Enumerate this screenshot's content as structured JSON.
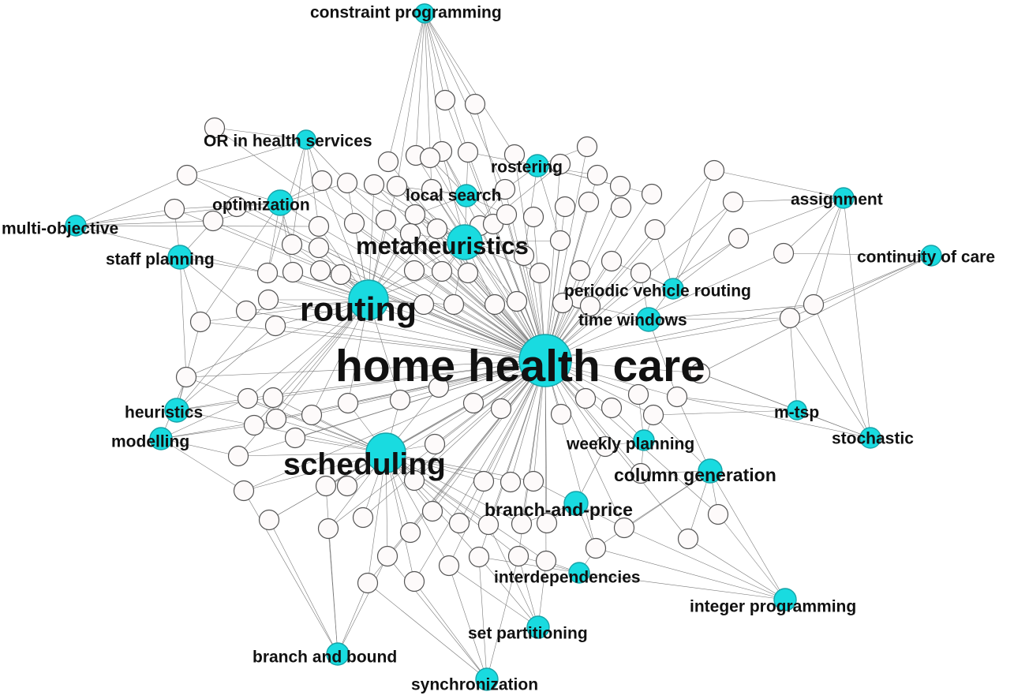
{
  "diagram": {
    "keywords": [
      {
        "id": "constraint-programming",
        "label": "constraint programming"
      },
      {
        "id": "or-in-health-services",
        "label": "OR in health services"
      },
      {
        "id": "rostering",
        "label": "rostering"
      },
      {
        "id": "local-search",
        "label": "local search"
      },
      {
        "id": "optimization",
        "label": "optimization"
      },
      {
        "id": "assignment",
        "label": "assignment"
      },
      {
        "id": "multi-objective",
        "label": "multi-objective"
      },
      {
        "id": "metaheuristics",
        "label": "metaheuristics"
      },
      {
        "id": "staff-planning",
        "label": "staff planning"
      },
      {
        "id": "continuity-of-care",
        "label": "continuity of care"
      },
      {
        "id": "periodic-vehicle-routing",
        "label": "periodic vehicle routing"
      },
      {
        "id": "routing",
        "label": "routing"
      },
      {
        "id": "time-windows",
        "label": "time windows"
      },
      {
        "id": "home-health-care",
        "label": "home health care"
      },
      {
        "id": "heuristics",
        "label": "heuristics"
      },
      {
        "id": "m-tsp",
        "label": "m-tsp"
      },
      {
        "id": "modelling",
        "label": "modelling"
      },
      {
        "id": "stochastic",
        "label": "stochastic"
      },
      {
        "id": "weekly-planning",
        "label": "weekly planning"
      },
      {
        "id": "scheduling",
        "label": "scheduling"
      },
      {
        "id": "column-generation",
        "label": "column generation"
      },
      {
        "id": "branch-and-price",
        "label": "branch-and-price"
      },
      {
        "id": "interdependencies",
        "label": "interdependencies"
      },
      {
        "id": "integer-programming",
        "label": "integer programming"
      },
      {
        "id": "set-partitioning",
        "label": "set partitioning"
      },
      {
        "id": "branch-and-bound",
        "label": "branch and bound"
      },
      {
        "id": "synchronization",
        "label": "synchronization"
      }
    ]
  }
}
